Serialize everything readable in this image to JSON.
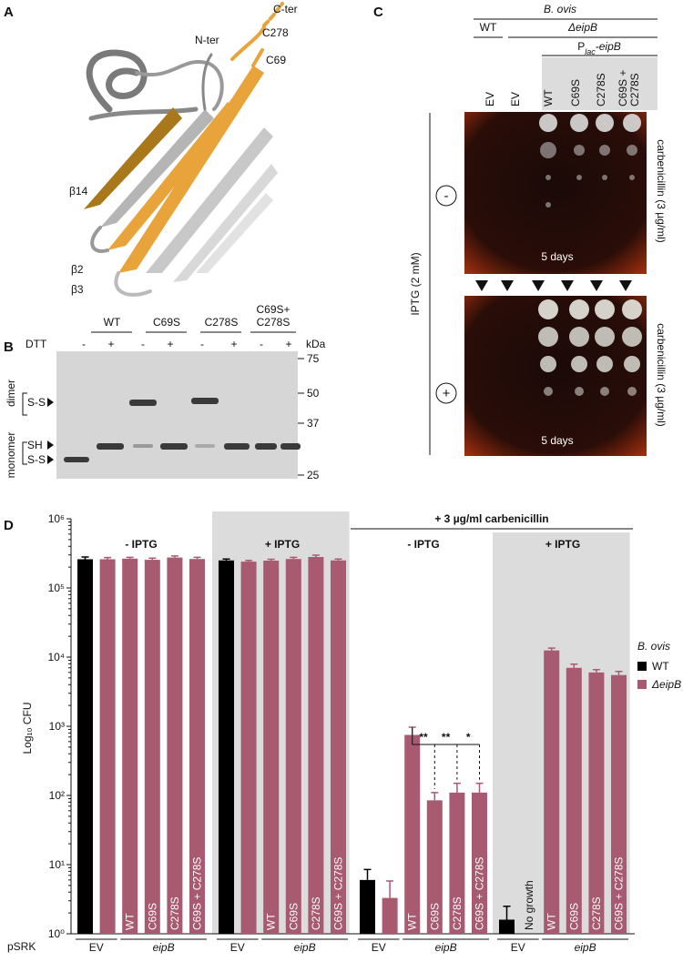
{
  "panel_a": {
    "label": "A",
    "n_ter": "N-ter",
    "c_ter": "C-ter",
    "c278": "C278",
    "c69": "C69",
    "b14": "β14",
    "b2": "β2",
    "b3": "β3"
  },
  "panel_b": {
    "label": "B",
    "lanes": [
      "WT",
      "C69S",
      "C278S"
    ],
    "lane4": [
      "C69S+",
      "C278S"
    ],
    "dtt": "DTT",
    "dtt_marks": [
      "-",
      "+",
      "-",
      "+",
      "-",
      "+",
      "-",
      "+"
    ],
    "kda": "kDa",
    "markers": [
      "75",
      "50",
      "37",
      "25"
    ],
    "dimer": "dimer",
    "monomer": "monomer",
    "ss_dimer": "S-S",
    "sh": "SH",
    "ss_monomer": "S-S"
  },
  "panel_c": {
    "label": "C",
    "species": "B. ovis",
    "wt": "WT",
    "mutant": "ΔeipB",
    "promoter": {
      "p": "P",
      "sub": "lac",
      "rest": "-eipB"
    },
    "columns": [
      "EV",
      "EV",
      "WT",
      "C69S",
      "C278S"
    ],
    "col6": [
      "C69S +",
      "C278S"
    ],
    "iptg": "IPTG (2 mM)",
    "minus": "-",
    "plus": "+",
    "antibiotic_top": "carbenicillin (3 µg/ml)",
    "antibiotic_bottom": "carbenicillin (3 µg/ml)",
    "days_top": "5 days",
    "days_bottom": "5 days"
  },
  "chart_data": {
    "type": "bar",
    "panel_label": "D",
    "y_label": "Log₁₀ CFU",
    "log_scale": true,
    "ylim": [
      1,
      1000000
    ],
    "yticks": [
      {
        "value": 1,
        "label": "10⁰"
      },
      {
        "value": 10,
        "label": "10¹"
      },
      {
        "value": 100,
        "label": "10²"
      },
      {
        "value": 1000,
        "label": "10³"
      },
      {
        "value": 10000,
        "label": "10⁴"
      },
      {
        "value": 100000,
        "label": "10⁵"
      },
      {
        "value": 1000000,
        "label": "10⁶"
      }
    ],
    "legend_title": "B. ovis",
    "series": [
      {
        "name": "WT",
        "color": "#000000"
      },
      {
        "name": "ΔeipB",
        "color": "#a85a70"
      }
    ],
    "bar_series": [
      0,
      1,
      1,
      1,
      1,
      1
    ],
    "carbenicillin": "+ 3 µg/ml carbenicillin",
    "x_row_label": "pSRK",
    "ev": "EV",
    "eipb": "eipB",
    "groups": [
      {
        "title": "- IPTG",
        "shaded": false,
        "values": [
          260000,
          260000,
          265000,
          255000,
          275000,
          262000
        ],
        "errors": [
          20000,
          15000,
          12000,
          15000,
          15000,
          15000
        ],
        "bar_labels": [
          null,
          null,
          "WT",
          "C69S",
          "C278S",
          "C69S + C278S"
        ]
      },
      {
        "title": "+ IPTG",
        "shaded": true,
        "values": [
          250000,
          240000,
          248000,
          262000,
          280000,
          250000
        ],
        "errors": [
          12000,
          10000,
          12000,
          15000,
          18000,
          12000
        ],
        "bar_labels": [
          null,
          null,
          "WT",
          "C69S",
          "C278S",
          "C69S + C278S"
        ]
      },
      {
        "title": "- IPTG",
        "shaded": false,
        "values": [
          6,
          3.3,
          750,
          85,
          110,
          110
        ],
        "errors": [
          2.5,
          2.5,
          220,
          25,
          40,
          40
        ],
        "bar_labels": [
          null,
          null,
          "WT",
          "C69S",
          "C278S",
          "C69S + C278S"
        ],
        "significance": [
          "**",
          "**",
          "*"
        ]
      },
      {
        "title": "+ IPTG",
        "shaded": true,
        "values": [
          1.6,
          null,
          12500,
          7000,
          6000,
          5500
        ],
        "errors": [
          0.9,
          null,
          1000,
          900,
          600,
          700
        ],
        "bar_labels": [
          null,
          "No growth",
          "WT",
          "C69S",
          "C278S",
          "C69S + C278S"
        ]
      }
    ]
  }
}
